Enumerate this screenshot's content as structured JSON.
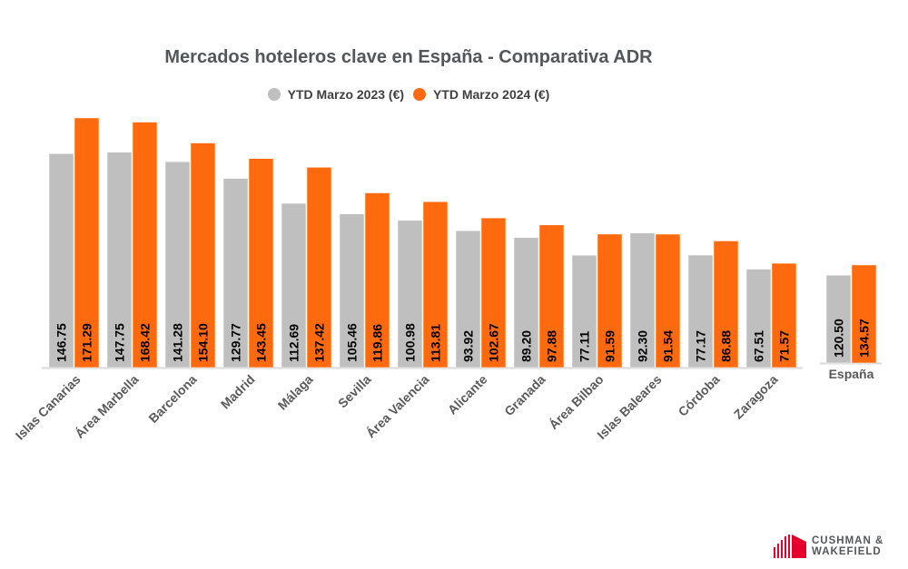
{
  "chart_data": [
    {
      "type": "bar",
      "title": "Mercados hoteleros clave en España - Comparativa ADR",
      "xlabel": "",
      "ylabel": "",
      "ylim": [
        0,
        175
      ],
      "grid": false,
      "legend_position": "top-center",
      "categories": [
        "Islas Canarias",
        "Área Marbella",
        "Barcelona",
        "Madrid",
        "Málaga",
        "Sevilla",
        "Área Valencia",
        "Alicante",
        "Granada",
        "Área Bilbao",
        "Islas Baleares",
        "Córdoba",
        "Zaragoza"
      ],
      "series": [
        {
          "name": "YTD Marzo 2023 (€)",
          "color": "#bfbfbf",
          "values": [
            146.75,
            147.75,
            141.28,
            129.77,
            112.69,
            105.46,
            100.98,
            93.92,
            89.2,
            77.11,
            92.3,
            77.17,
            67.51
          ],
          "labels": [
            "146.75",
            "147.75",
            "141.28",
            "129.77",
            "112.69",
            "105.46",
            "100.98",
            "93.92",
            "89.20",
            "77.11",
            "92.30",
            "77.17",
            "67.51"
          ]
        },
        {
          "name": "YTD Marzo 2024 (€)",
          "color": "#ff6a0f",
          "values": [
            171.29,
            168.42,
            154.1,
            143.45,
            137.42,
            119.86,
            113.81,
            102.67,
            97.88,
            91.59,
            91.54,
            86.88,
            71.57
          ],
          "labels": [
            "171.29",
            "168.42",
            "154.10",
            "143.45",
            "137.42",
            "119.86",
            "113.81",
            "102.67",
            "97.88",
            "91.59",
            "91.54",
            "86.88",
            "71.57"
          ]
        }
      ]
    },
    {
      "type": "bar",
      "title": "",
      "ylim": [
        0,
        350
      ],
      "grid": false,
      "categories": [
        "España"
      ],
      "series": [
        {
          "name": "YTD Marzo 2023 (€)",
          "color": "#bfbfbf",
          "values": [
            120.5
          ],
          "labels": [
            "120.50"
          ]
        },
        {
          "name": "YTD Marzo 2024 (€)",
          "color": "#ff6a0f",
          "values": [
            134.57
          ],
          "labels": [
            "134.57"
          ]
        }
      ]
    }
  ],
  "legend": [
    {
      "label": "YTD Marzo 2023 (€)",
      "color": "#bfbfbf"
    },
    {
      "label": "YTD Marzo 2024 (€)",
      "color": "#ff6a0f"
    }
  ],
  "logo": {
    "line1": "CUSHMAN &",
    "line2": "WAKEFIELD",
    "color": "#e4002b"
  }
}
